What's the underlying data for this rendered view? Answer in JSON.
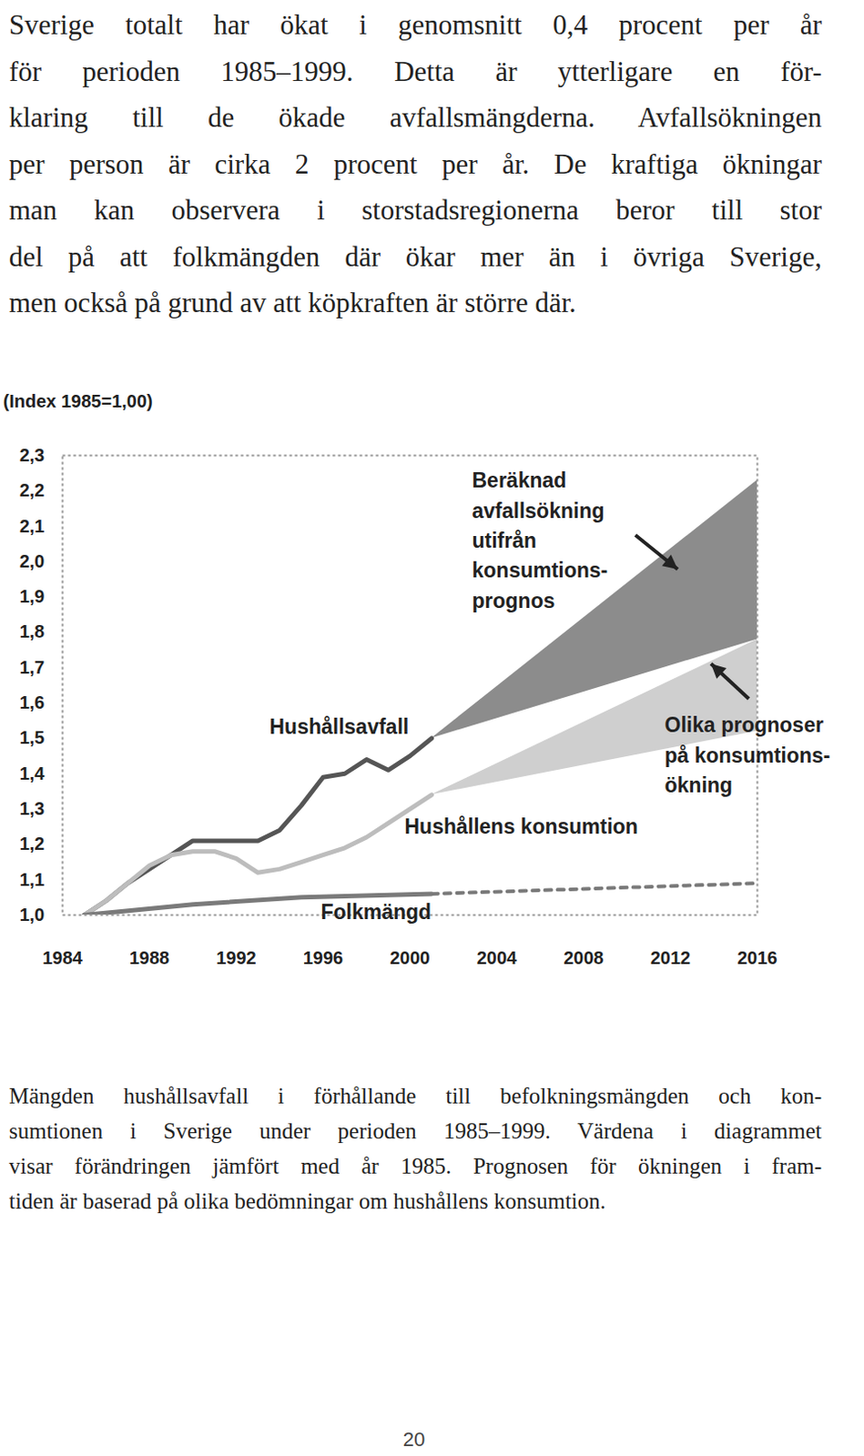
{
  "paragraph": {
    "lines": [
      "Sverige totalt har ökat i genomsnitt 0,4 procent per år",
      "för perioden 1985–1999. Detta är ytterligare en för-",
      "klaring till de ökade avfallsmängderna. Avfallsökningen",
      "per person är cirka 2 procent per år. De kraftiga ökningar",
      "man kan observera i storstadsregionerna beror till stor",
      "del på att folkmängden där ökar mer än i övriga Sverige,",
      "men också på grund av att köpkraften är större där."
    ]
  },
  "chart_data": {
    "type": "line",
    "y_label": "(Index 1985=1,00)",
    "xlim": [
      1984,
      2016
    ],
    "xticks": [
      1984,
      1988,
      1992,
      1996,
      2000,
      2004,
      2008,
      2012,
      2016
    ],
    "ylim": [
      1.0,
      2.3
    ],
    "yticks": [
      {
        "value": 1.0,
        "label": "1,0"
      },
      {
        "value": 1.1,
        "label": "1,1"
      },
      {
        "value": 1.2,
        "label": "1,2"
      },
      {
        "value": 1.3,
        "label": "1,3"
      },
      {
        "value": 1.4,
        "label": "1,4"
      },
      {
        "value": 1.5,
        "label": "1,5"
      },
      {
        "value": 1.6,
        "label": "1,6"
      },
      {
        "value": 1.7,
        "label": "1,7"
      },
      {
        "value": 1.8,
        "label": "1,8"
      },
      {
        "value": 1.9,
        "label": "1,9"
      },
      {
        "value": 2.0,
        "label": "2,0"
      },
      {
        "value": 2.1,
        "label": "2,1"
      },
      {
        "value": 2.2,
        "label": "2,2"
      },
      {
        "value": 2.3,
        "label": "2,3"
      }
    ],
    "grid": false,
    "series": [
      {
        "name": "Beräknad\navfallsökning\nutifrån\nkonsumtions-\nprognos",
        "type": "area",
        "color": "#8c8c8c",
        "x": [
          2001,
          2016
        ],
        "low": [
          1.5,
          1.78
        ],
        "high": [
          1.5,
          2.23
        ]
      },
      {
        "name": "Olika prognoser\npå konsumtions-\nökning",
        "type": "area",
        "color": "#cfcfcf",
        "x": [
          2001,
          2016
        ],
        "low": [
          1.34,
          1.52
        ],
        "high": [
          1.34,
          1.78
        ]
      },
      {
        "name": "Hushållsavfall",
        "type": "line",
        "color": "#555555",
        "line_style": "solid",
        "x": [
          1985,
          1986,
          1987,
          1988,
          1989,
          1990,
          1991,
          1992,
          1993,
          1994,
          1995,
          1996,
          1997,
          1998,
          1999,
          2000,
          2001
        ],
        "values": [
          1.0,
          1.04,
          1.09,
          1.13,
          1.17,
          1.21,
          1.21,
          1.21,
          1.21,
          1.24,
          1.31,
          1.39,
          1.4,
          1.44,
          1.41,
          1.45,
          1.5
        ]
      },
      {
        "name": "Hushållens konsumtion",
        "type": "line",
        "color": "#bdbdbd",
        "line_style": "solid",
        "x": [
          1985,
          1986,
          1987,
          1988,
          1989,
          1990,
          1991,
          1992,
          1993,
          1994,
          1995,
          1996,
          1997,
          1998,
          1999,
          2000,
          2001
        ],
        "values": [
          1.0,
          1.04,
          1.09,
          1.14,
          1.17,
          1.18,
          1.18,
          1.16,
          1.12,
          1.13,
          1.15,
          1.17,
          1.19,
          1.22,
          1.26,
          1.3,
          1.34
        ]
      },
      {
        "name": "Folkmängd",
        "type": "line",
        "color": "#7a7a7a",
        "line_style": "solid",
        "x": [
          1985,
          1990,
          1995,
          2001
        ],
        "values": [
          1.0,
          1.03,
          1.05,
          1.06
        ],
        "forecast": {
          "x": [
            2001,
            2016
          ],
          "values": [
            1.06,
            1.09
          ],
          "line_style": "dashed"
        }
      }
    ]
  },
  "caption": {
    "lines": [
      "Mängden hushållsavfall i förhållande till befolkningsmängden och kon-",
      "sumtionen i Sverige under perioden 1985–1999. Värdena i diagrammet",
      "visar förändringen jämfört med år 1985. Prognosen för ökningen i fram-",
      "tiden är baserad på olika bedömningar om hushållens konsumtion."
    ]
  },
  "page_number": "20"
}
